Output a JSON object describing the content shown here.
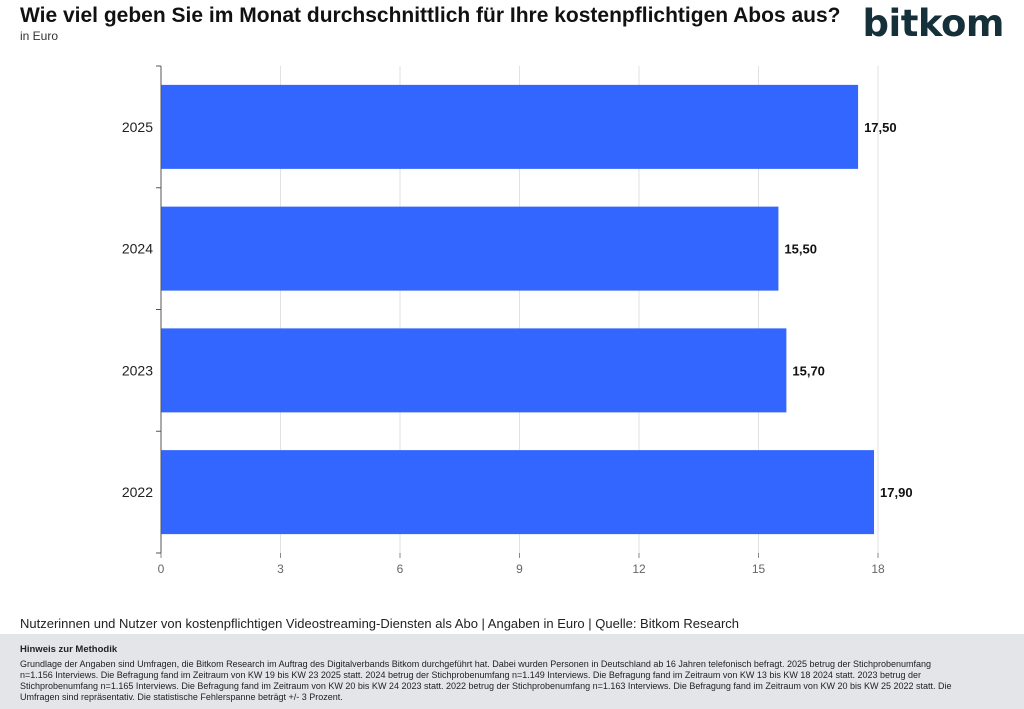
{
  "header": {
    "title": "Wie viel geben Sie im Monat durchschnittlich für Ihre kostenpflichtigen Abos aus?",
    "subtitle": "in Euro",
    "logo": "bitkom"
  },
  "chart_data": {
    "type": "bar",
    "orientation": "horizontal",
    "title": "Wie viel geben Sie im Monat durchschnittlich für Ihre kostenpflichtigen Abos aus?",
    "subtitle": "in Euro",
    "categories": [
      "2025",
      "2024",
      "2023",
      "2022"
    ],
    "values": [
      17.5,
      15.5,
      15.7,
      17.9
    ],
    "value_labels": [
      "17,50",
      "15,50",
      "15,70",
      "17,90"
    ],
    "xlim": [
      0,
      18
    ],
    "x_ticks": [
      0,
      3,
      6,
      9,
      12,
      15,
      18
    ],
    "xlabel": "",
    "ylabel": "",
    "grid": true,
    "bar_color": "#3366ff"
  },
  "footer": {
    "source": "Nutzerinnen und Nutzer von kostenpflichtigen Videostreaming-Diensten als Abo | Angaben in Euro | Quelle: Bitkom Research",
    "method_title": "Hinweis zur Methodik",
    "method_text": "Grundlage der Angaben sind Umfragen, die Bitkom Research im Auftrag des Digitalverbands Bitkom durchgeführt hat. Dabei wurden Personen in Deutschland ab 16 Jahren telefonisch befragt. 2025 betrug der Stichprobenumfang n=1.156 Interviews. Die Befragung fand im Zeitraum von KW 19 bis KW 23 2025 statt. 2024 betrug der Stichprobenumfang n=1.149 Interviews. Die Befragung fand im Zeitraum von KW 13 bis KW 18 2024 statt. 2023 betrug der Stichprobenumfang n=1.165 Interviews. Die Befragung fand im Zeitraum von KW 20 bis KW 24 2023 statt. 2022 betrug der Stichprobenumfang n=1.163 Interviews. Die Befragung fand im Zeitraum von KW 20 bis KW 25 2022 statt. Die Umfragen sind repräsentativ. Die statistische Fehlerspanne beträgt +/- 3 Prozent."
  }
}
